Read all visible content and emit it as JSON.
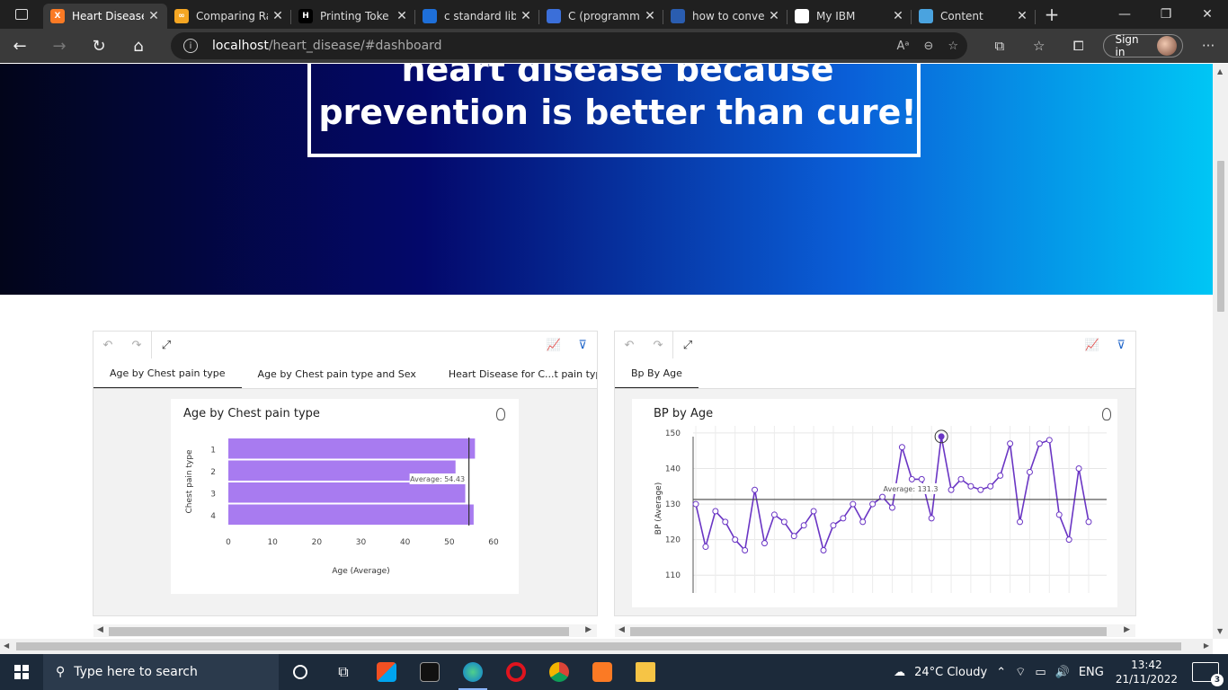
{
  "browser": {
    "tabs": [
      {
        "label": "Heart Disease",
        "favicon_color": "#fb7a24",
        "favicon_text": "X",
        "active": true
      },
      {
        "label": "Comparing Ra",
        "favicon_color": "#f5a623",
        "favicon_text": "∞",
        "active": false
      },
      {
        "label": "Printing Toke",
        "favicon_color": "#000000",
        "favicon_text": "H",
        "active": false
      },
      {
        "label": "c standard lib",
        "favicon_color": "#1e6fd9",
        "favicon_text": "",
        "active": false
      },
      {
        "label": "C (programm",
        "favicon_color": "#3b6fd9",
        "favicon_text": "",
        "active": false
      },
      {
        "label": "how to conve",
        "favicon_color": "#2a5db0",
        "favicon_text": "",
        "active": false
      },
      {
        "label": "My IBM",
        "favicon_color": "#ffffff",
        "favicon_text": "",
        "active": false
      },
      {
        "label": "Content",
        "favicon_color": "#4aa3df",
        "favicon_text": "",
        "active": false
      }
    ],
    "url_host": "localhost",
    "url_path": "/heart_disease/#dashboard",
    "signin_label": "Sign in"
  },
  "hero": {
    "line1": "heart disease because",
    "line2": "prevention is better than cure!"
  },
  "left_panel": {
    "tabs": [
      "Age by Chest pain type",
      "Age by Chest pain type and Sex",
      "Heart Disease for C...t pain type an"
    ],
    "card_title": "Age by Chest pain type"
  },
  "right_panel": {
    "tabs": [
      "Bp By Age"
    ],
    "card_title": "BP by Age"
  },
  "chart_data": [
    {
      "type": "bar",
      "orientation": "horizontal",
      "title": "Age by Chest pain type",
      "xlabel": "Age (Average)",
      "ylabel": "Chest pain type",
      "categories": [
        "1",
        "2",
        "3",
        "4"
      ],
      "values": [
        55.8,
        51.4,
        53.6,
        55.5
      ],
      "xlim": [
        0,
        60
      ],
      "xticks": [
        0,
        10,
        20,
        30,
        40,
        50,
        60
      ],
      "reference_line": {
        "label": "Average: 54.43",
        "value": 54.43
      },
      "color": "#a87bf0"
    },
    {
      "type": "line",
      "title": "BP by Age",
      "ylabel": "BP (Average)",
      "ylim": [
        105,
        152
      ],
      "yticks": [
        110,
        120,
        130,
        140,
        150
      ],
      "values": [
        130,
        118,
        128,
        125,
        120,
        117,
        134,
        119,
        127,
        125,
        121,
        124,
        128,
        117,
        124,
        126,
        130,
        125,
        130,
        132,
        129,
        146,
        137,
        137,
        126,
        149,
        134,
        137,
        135,
        134,
        135,
        138,
        147,
        125,
        139,
        147,
        148,
        127,
        120,
        140,
        125
      ],
      "highlight_index": 25,
      "reference_line": {
        "label": "Average: 131.3",
        "value": 131.3
      },
      "color": "#6a35c4"
    }
  ],
  "taskbar": {
    "search_placeholder": "Type here to search",
    "weather": "24°C  Cloudy",
    "language": "ENG",
    "time": "13:42",
    "date": "21/11/2022",
    "notification_count": "3"
  }
}
